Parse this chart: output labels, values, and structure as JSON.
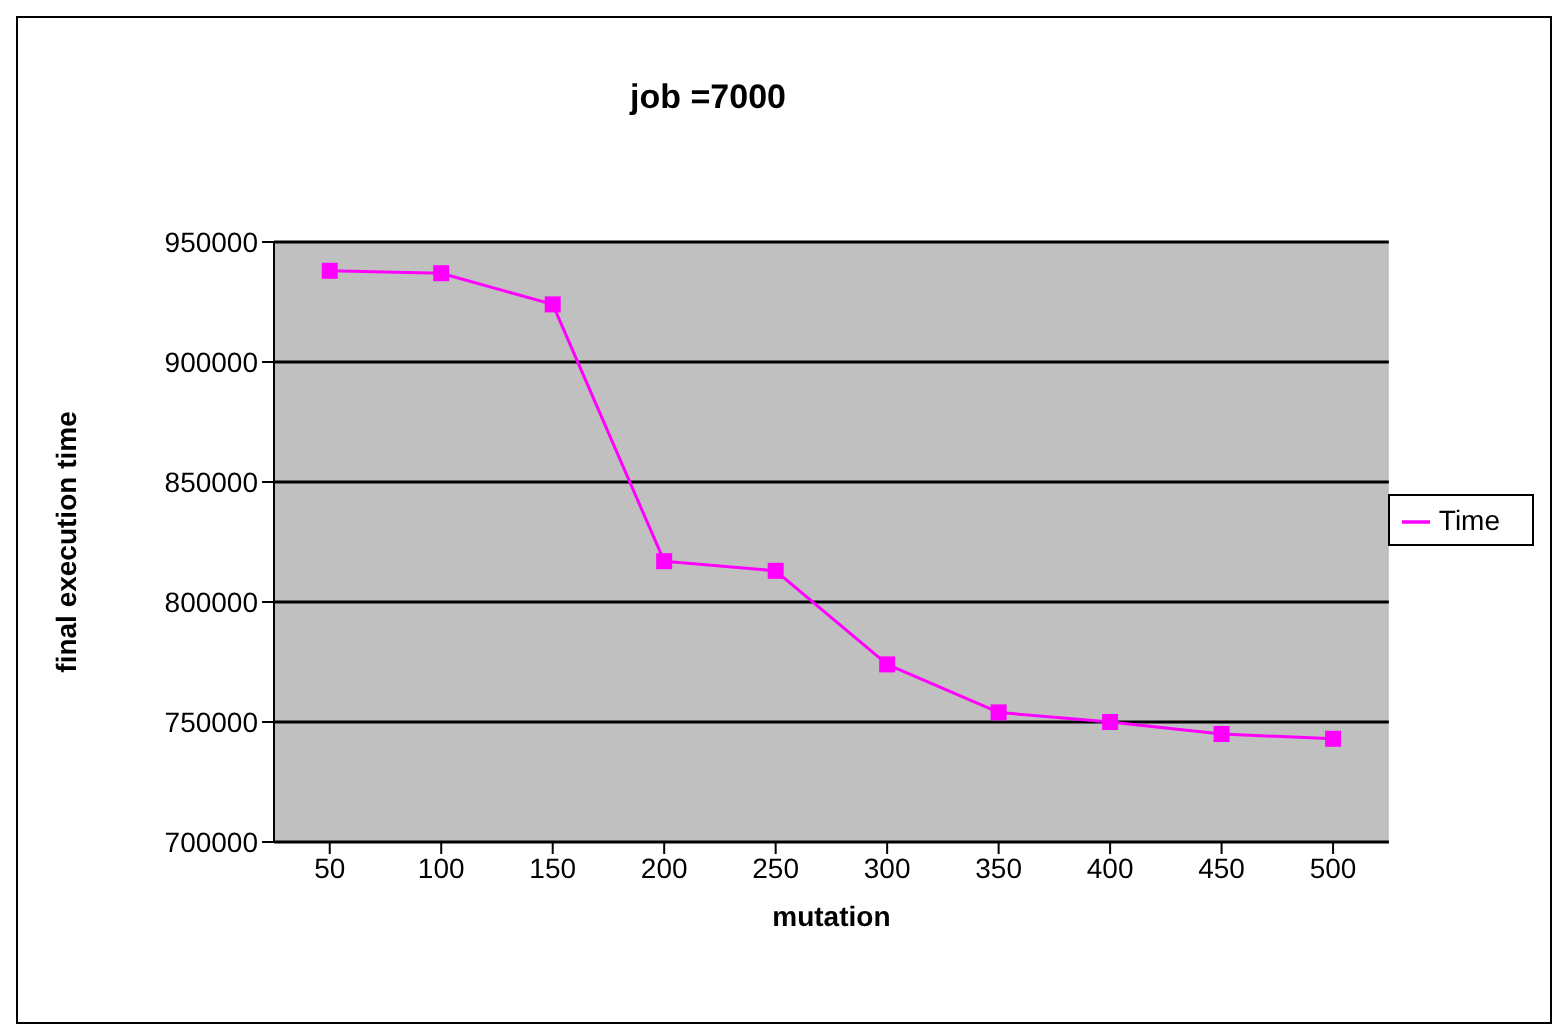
{
  "chart_data": {
    "type": "line",
    "title": "job =7000",
    "xlabel": "mutation",
    "ylabel": "final execution time",
    "categories": [
      "50",
      "100",
      "150",
      "200",
      "250",
      "300",
      "350",
      "400",
      "450",
      "500"
    ],
    "series": [
      {
        "name": "Time",
        "color": "#ff00ff",
        "values": [
          938000,
          937000,
          924000,
          817000,
          813000,
          774000,
          754000,
          750000,
          745000,
          743000
        ]
      }
    ],
    "ylim": [
      700000,
      950000
    ],
    "yticks": [
      700000,
      750000,
      800000,
      850000,
      900000,
      950000
    ],
    "grid": "y",
    "legend": "right",
    "marker": "square",
    "line_style": "solid"
  }
}
